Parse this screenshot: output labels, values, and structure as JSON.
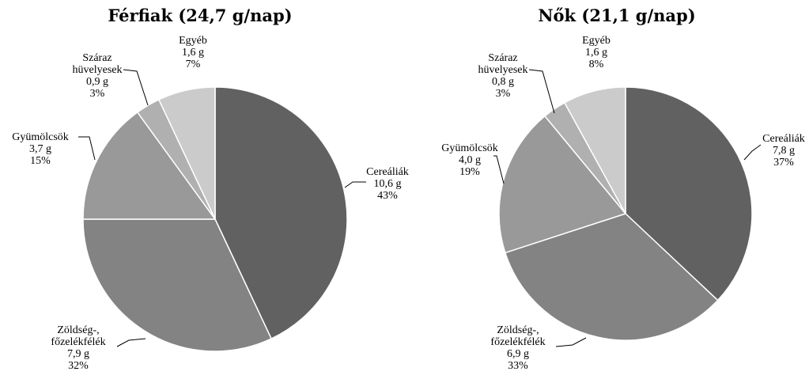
{
  "chart_data": [
    {
      "type": "pie",
      "title": "Férfiak (24,7 g/nap)",
      "slices": [
        {
          "lines": [
            "Cereáliák",
            "10,6 g",
            "43%"
          ],
          "value": 10.6,
          "percent": 43,
          "color": "#616161"
        },
        {
          "lines": [
            "Zöldség-,",
            "főzelékfélék",
            "7,9 g",
            "32%"
          ],
          "value": 7.9,
          "percent": 32,
          "color": "#838383"
        },
        {
          "lines": [
            "Gyümölcsök",
            "3,7 g",
            "15%"
          ],
          "value": 3.7,
          "percent": 15,
          "color": "#999999"
        },
        {
          "lines": [
            "Száraz",
            "hüvelyesek",
            "0,9 g",
            "3%"
          ],
          "value": 0.9,
          "percent": 3,
          "color": "#b0b0b0"
        },
        {
          "lines": [
            "Egyéb",
            "1,6 g",
            "7%"
          ],
          "value": 1.6,
          "percent": 7,
          "color": "#cbcbcb"
        }
      ]
    },
    {
      "type": "pie",
      "title": "Nők (21,1 g/nap)",
      "slices": [
        {
          "lines": [
            "Cereáliák",
            "7,8 g",
            "37%"
          ],
          "value": 7.8,
          "percent": 37,
          "color": "#616161"
        },
        {
          "lines": [
            "Zöldség-,",
            "főzelékfélék",
            "6,9 g",
            "33%"
          ],
          "value": 6.9,
          "percent": 33,
          "color": "#838383"
        },
        {
          "lines": [
            "Gyümölcsök",
            "4,0 g",
            "19%"
          ],
          "value": 4.0,
          "percent": 19,
          "color": "#999999"
        },
        {
          "lines": [
            "Száraz",
            "hüvelyesek",
            "0,8 g",
            "3%"
          ],
          "value": 0.8,
          "percent": 3,
          "color": "#b0b0b0"
        },
        {
          "lines": [
            "Egyéb",
            "1,6 g",
            "8%"
          ],
          "value": 1.6,
          "percent": 8,
          "color": "#cbcbcb"
        }
      ]
    }
  ]
}
